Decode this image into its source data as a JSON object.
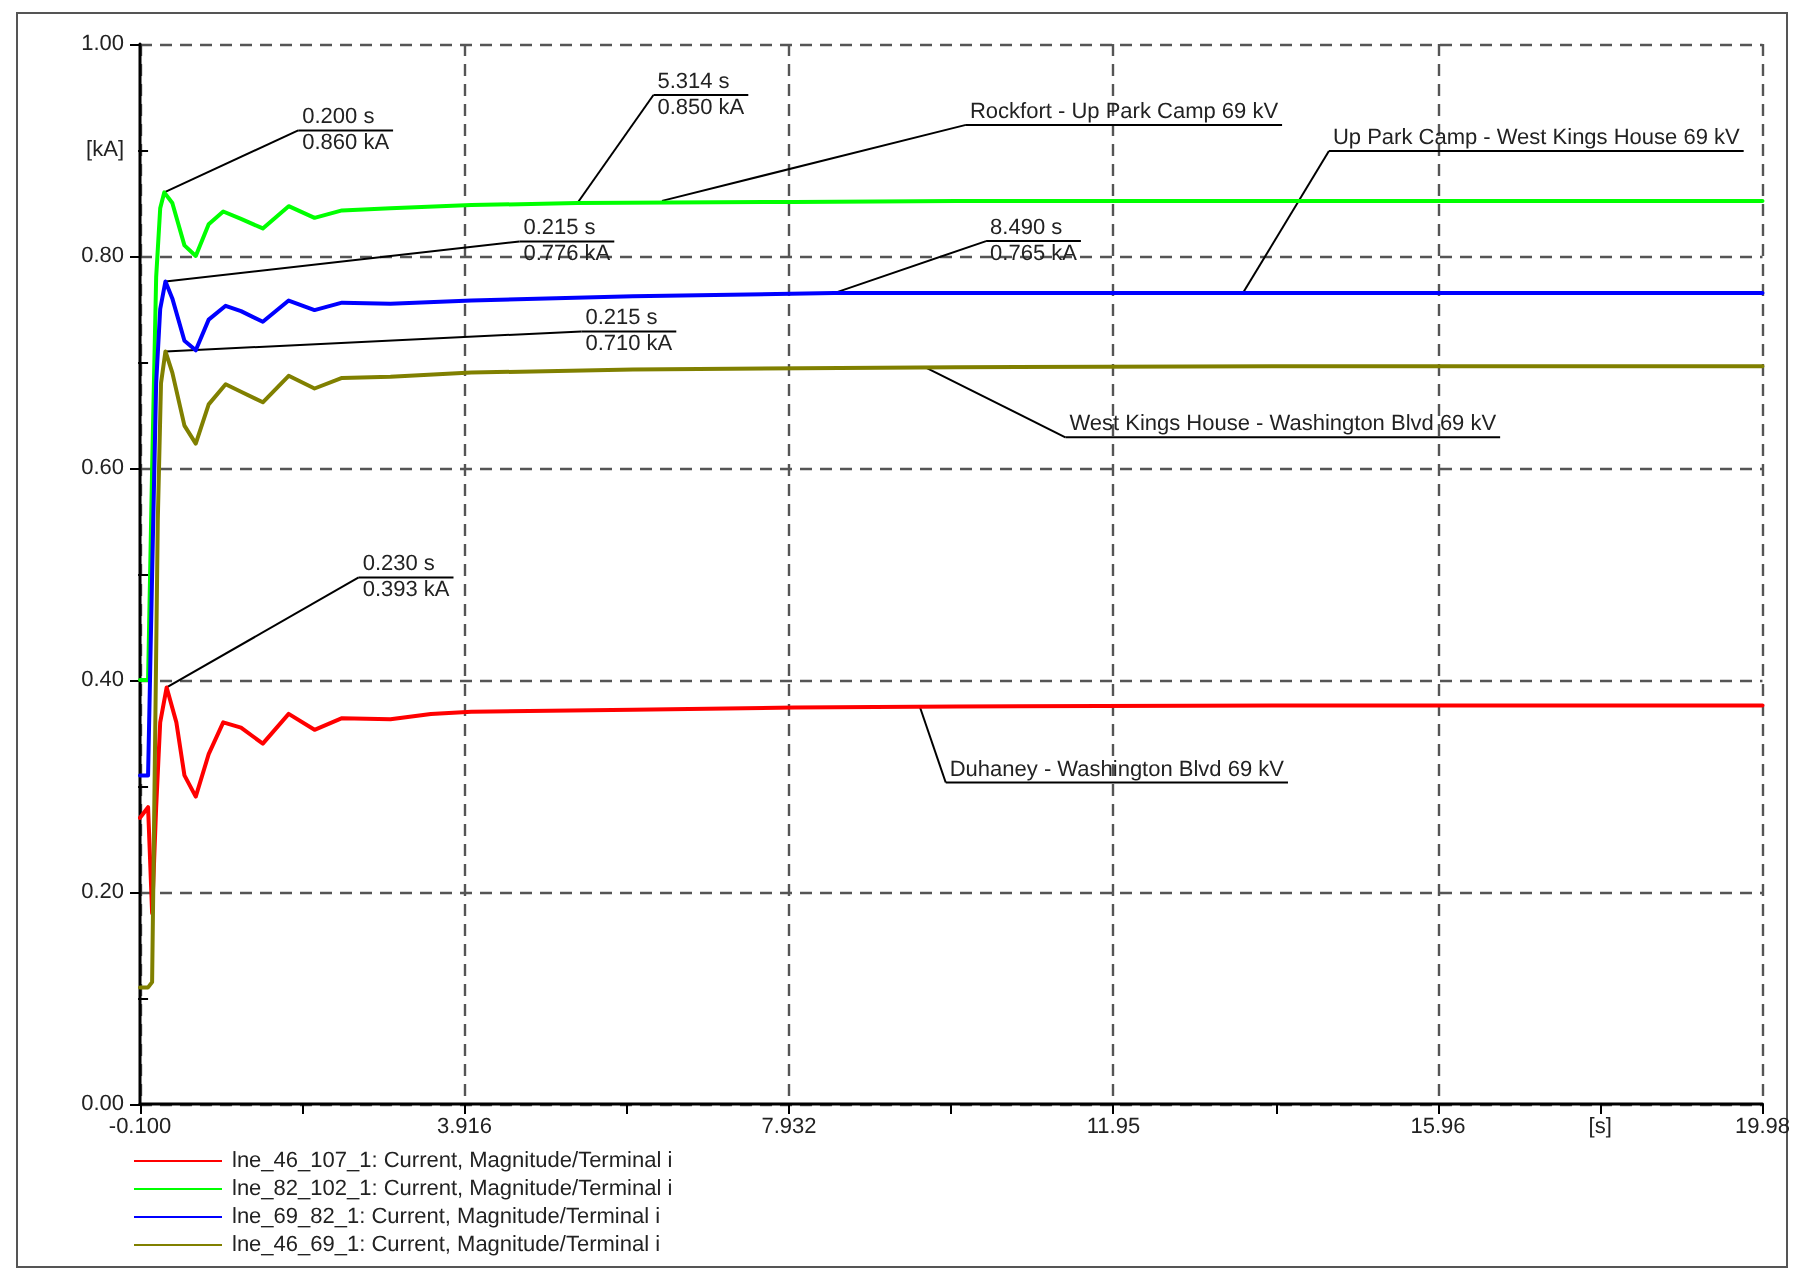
{
  "chart_data": {
    "type": "line",
    "xlabel": "[s]",
    "ylabel": "[kA]",
    "xlim": [
      -0.1,
      19.98
    ],
    "ylim": [
      0,
      1
    ],
    "xticks": [
      {
        "value": -0.1,
        "label": "-0.100"
      },
      {
        "value": 1.908,
        "label": null
      },
      3.916,
      {
        "value": 5.924,
        "label": null
      },
      7.932,
      {
        "value": 9.94,
        "label": null
      },
      {
        "value": 11.948,
        "label": "11.95"
      },
      {
        "value": 13.956,
        "label": null
      },
      {
        "value": 15.964,
        "label": "15.96"
      },
      {
        "value": 17.972,
        "label": null
      },
      19.98
    ],
    "yticks": [
      {
        "value": 0,
        "label": "0.00"
      },
      {
        "value": 0.1,
        "label": null
      },
      {
        "value": 0.2,
        "label": "0.20"
      },
      {
        "value": 0.3,
        "label": null
      },
      {
        "value": 0.4,
        "label": "0.40"
      },
      {
        "value": 0.5,
        "label": null
      },
      {
        "value": 0.6,
        "label": "0.60"
      },
      {
        "value": 0.7,
        "label": null
      },
      {
        "value": 0.8,
        "label": "0.80"
      },
      {
        "value": 0.9,
        "label": null
      },
      {
        "value": 1,
        "label": "1.00"
      }
    ],
    "grid": true,
    "legend": "bottom left",
    "marker": "none",
    "line_style": "solid",
    "series": [
      {
        "name": "lne_46_107_1: Current, Magnitude/Terminal i",
        "color": "#ff0000",
        "x": [
          -0.1,
          0,
          0.05,
          0.1,
          0.15,
          0.23,
          0.35,
          0.45,
          0.59,
          0.75,
          0.93,
          1.15,
          1.42,
          1.74,
          2.06,
          2.4,
          3.0,
          3.5,
          4.0,
          6.0,
          8.0,
          10.0,
          14.0,
          19.98
        ],
        "values": [
          0.27,
          0.28,
          0.18,
          0.28,
          0.36,
          0.393,
          0.36,
          0.31,
          0.29,
          0.33,
          0.36,
          0.355,
          0.34,
          0.368,
          0.353,
          0.364,
          0.363,
          0.368,
          0.37,
          0.372,
          0.374,
          0.375,
          0.376,
          0.376
        ]
      },
      {
        "name": "lne_82_102_1: Current, Magnitude/Terminal i",
        "color": "#00ff00",
        "x": [
          -0.1,
          0,
          0.05,
          0.1,
          0.15,
          0.2,
          0.3,
          0.45,
          0.59,
          0.75,
          0.93,
          1.15,
          1.42,
          1.74,
          2.06,
          2.4,
          3.0,
          4.0,
          5.314,
          8.0,
          10.0,
          14.0,
          19.98
        ],
        "values": [
          0.4,
          0.4,
          0.6,
          0.78,
          0.845,
          0.86,
          0.85,
          0.81,
          0.8,
          0.83,
          0.842,
          0.835,
          0.826,
          0.847,
          0.836,
          0.843,
          0.845,
          0.848,
          0.85,
          0.851,
          0.852,
          0.852,
          0.852
        ]
      },
      {
        "name": "lne_69_82_1: Current, Magnitude/Terminal i",
        "color": "#0000ff",
        "x": [
          -0.1,
          0,
          0.05,
          0.1,
          0.15,
          0.215,
          0.3,
          0.45,
          0.59,
          0.75,
          0.96,
          1.15,
          1.42,
          1.74,
          2.06,
          2.4,
          3.0,
          4.0,
          6.0,
          8.49,
          12.0,
          19.98
        ],
        "values": [
          0.31,
          0.31,
          0.5,
          0.68,
          0.75,
          0.776,
          0.76,
          0.72,
          0.711,
          0.74,
          0.753,
          0.748,
          0.738,
          0.758,
          0.749,
          0.756,
          0.755,
          0.758,
          0.762,
          0.765,
          0.765,
          0.765
        ]
      },
      {
        "name": "lne_46_69_1: Current, Magnitude/Terminal i",
        "color": "#808000",
        "x": [
          -0.1,
          0,
          0.05,
          0.08,
          0.12,
          0.16,
          0.215,
          0.3,
          0.45,
          0.59,
          0.75,
          0.96,
          1.15,
          1.42,
          1.74,
          2.06,
          2.4,
          3.0,
          4.0,
          6.0,
          10.0,
          14.0,
          19.98
        ],
        "values": [
          0.11,
          0.11,
          0.115,
          0.3,
          0.55,
          0.68,
          0.71,
          0.69,
          0.64,
          0.623,
          0.66,
          0.679,
          0.672,
          0.662,
          0.687,
          0.675,
          0.685,
          0.686,
          0.69,
          0.693,
          0.695,
          0.696,
          0.696
        ]
      }
    ],
    "annotations": [
      {
        "text": "0.200 s\n0.860 kA",
        "x": 0.2,
        "y": 0.86
      },
      {
        "text": "5.314 s\n0.850 kA",
        "x": 5.314,
        "y": 0.85
      },
      {
        "text": "0.215 s\n0.776 kA",
        "x": 0.215,
        "y": 0.776
      },
      {
        "text": "0.215 s\n0.710 kA",
        "x": 0.215,
        "y": 0.71
      },
      {
        "text": "0.230 s\n0.393 kA",
        "x": 0.23,
        "y": 0.393
      },
      {
        "text": "8.490 s\n0.765 kA",
        "x": 8.49,
        "y": 0.765
      },
      {
        "text": "Rockfort - Up Park Camp 69 kV",
        "x": 6.36,
        "y": 0.852
      },
      {
        "text": "Up Park Camp - West Kings House 69 kV",
        "x": 13.55,
        "y": 0.765
      },
      {
        "text": "West Kings House - Washington Blvd 69 kV",
        "x": 9.62,
        "y": 0.695
      },
      {
        "text": "Duhaney - Washington Blvd 69 kV",
        "x": 9.55,
        "y": 0.375
      }
    ]
  }
}
